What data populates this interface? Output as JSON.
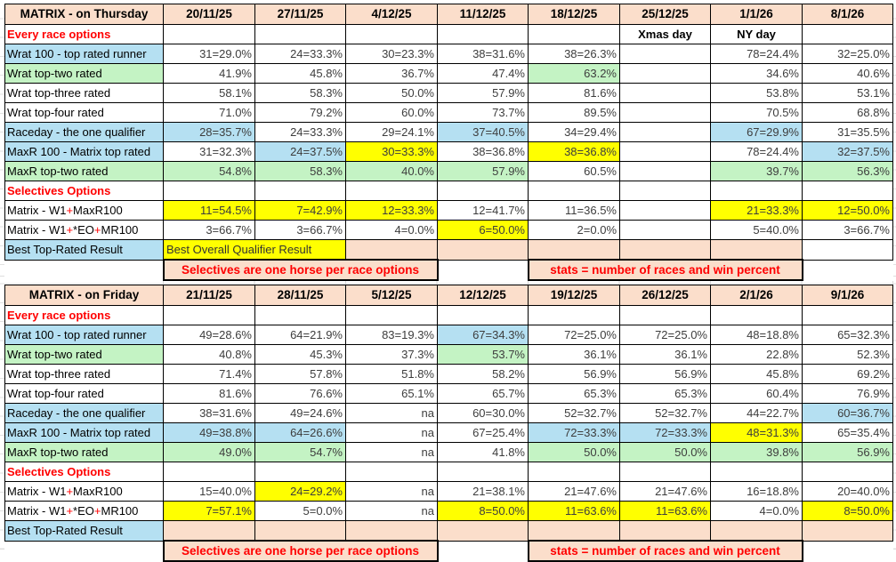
{
  "colors": {
    "header_bg": "#fbdecb",
    "highlight_blue": "#b5e0f2",
    "highlight_green": "#c4f3c4",
    "highlight_yellow": "#ffff00",
    "note_red": "#ff0000",
    "cell_border": "#000000"
  },
  "tables": [
    {
      "name": "matrix-thursday",
      "title": "MATRIX - on Thursday",
      "dates": [
        "20/11/25",
        "27/11/25",
        "4/12/25",
        "11/12/25",
        "18/12/25",
        "25/12/25",
        "1/1/26",
        "8/1/26"
      ],
      "rows": [
        {
          "type": "section",
          "name": "every-race-options",
          "label": [
            {
              "t": "Every race options",
              "red": true
            }
          ],
          "cells": [
            "",
            "",
            "",
            "",
            "",
            "Xmas day",
            "NY day",
            ""
          ]
        },
        {
          "type": "data",
          "name": "wrat-100",
          "label": [
            {
              "t": "Wrat 100 - top rated runner"
            }
          ],
          "label_bg": "blue",
          "cells": [
            {
              "t": "31=29.0%"
            },
            {
              "t": "24=33.3%"
            },
            {
              "t": "30=23.3%"
            },
            {
              "t": "38=31.6%"
            },
            {
              "t": "38=26.3%"
            },
            {
              "t": ""
            },
            {
              "t": "78=24.4%"
            },
            {
              "t": "32=25.0%"
            }
          ]
        },
        {
          "type": "data",
          "name": "wrat-top-two",
          "label": [
            {
              "t": "Wrat top-two rated"
            }
          ],
          "label_bg": "green",
          "cells": [
            {
              "t": "41.9%"
            },
            {
              "t": "45.8%"
            },
            {
              "t": "36.7%"
            },
            {
              "t": "47.4%"
            },
            {
              "t": "63.2%",
              "bg": "green"
            },
            {
              "t": ""
            },
            {
              "t": "34.6%"
            },
            {
              "t": "40.6%"
            }
          ]
        },
        {
          "type": "data",
          "name": "wrat-top-three",
          "label": [
            {
              "t": "Wrat top-three rated"
            }
          ],
          "cells": [
            {
              "t": "58.1%"
            },
            {
              "t": "58.3%"
            },
            {
              "t": "50.0%"
            },
            {
              "t": "57.9%"
            },
            {
              "t": "81.6%"
            },
            {
              "t": ""
            },
            {
              "t": "53.8%"
            },
            {
              "t": "53.1%"
            }
          ]
        },
        {
          "type": "data",
          "name": "wrat-top-four",
          "label": [
            {
              "t": "Wrat top-four rated"
            }
          ],
          "cells": [
            {
              "t": "71.0%"
            },
            {
              "t": "79.2%"
            },
            {
              "t": "60.0%"
            },
            {
              "t": "73.7%"
            },
            {
              "t": "89.5%"
            },
            {
              "t": ""
            },
            {
              "t": "70.5%"
            },
            {
              "t": "68.8%"
            }
          ]
        },
        {
          "type": "data",
          "name": "raceday",
          "label": [
            {
              "t": "Raceday - the one qualifier"
            }
          ],
          "label_bg": "blue",
          "cells": [
            {
              "t": "28=35.7%",
              "bg": "blue"
            },
            {
              "t": "24=33.3%"
            },
            {
              "t": "29=24.1%"
            },
            {
              "t": "37=40.5%",
              "bg": "blue"
            },
            {
              "t": "34=29.4%"
            },
            {
              "t": ""
            },
            {
              "t": "67=29.9%",
              "bg": "blue"
            },
            {
              "t": "31=35.5%"
            }
          ]
        },
        {
          "type": "data",
          "name": "maxr-100",
          "label": [
            {
              "t": "MaxR 100 - Matrix top rated"
            }
          ],
          "label_bg": "blue",
          "cells": [
            {
              "t": "31=32.3%"
            },
            {
              "t": "24=37.5%",
              "bg": "blue"
            },
            {
              "t": "30=33.3%",
              "bg": "yellow"
            },
            {
              "t": "38=36.8%"
            },
            {
              "t": "38=36.8%",
              "bg": "yellow"
            },
            {
              "t": ""
            },
            {
              "t": "78=24.4%"
            },
            {
              "t": "32=37.5%",
              "bg": "blue"
            }
          ]
        },
        {
          "type": "data",
          "name": "maxr-top-two",
          "label": [
            {
              "t": "MaxR top-two rated"
            }
          ],
          "label_bg": "green",
          "cells": [
            {
              "t": "54.8%",
              "bg": "green"
            },
            {
              "t": "58.3%",
              "bg": "green"
            },
            {
              "t": "40.0%",
              "bg": "green"
            },
            {
              "t": "57.9%",
              "bg": "green"
            },
            {
              "t": "60.5%"
            },
            {
              "t": ""
            },
            {
              "t": "39.7%",
              "bg": "green"
            },
            {
              "t": "56.3%",
              "bg": "green"
            }
          ]
        },
        {
          "type": "section",
          "name": "selectives-options",
          "label": [
            {
              "t": "Selectives Options",
              "red": true
            }
          ],
          "cells": [
            "",
            "",
            "",
            "",
            "",
            "",
            "",
            ""
          ]
        },
        {
          "type": "data",
          "name": "matrix-w1-maxr100",
          "label": [
            {
              "t": "Matrix - W1"
            },
            {
              "t": "+",
              "red": true
            },
            {
              "t": "MaxR100"
            }
          ],
          "cells": [
            {
              "t": "11=54.5%",
              "bg": "yellow"
            },
            {
              "t": "7=42.9%",
              "bg": "yellow"
            },
            {
              "t": "12=33.3%",
              "bg": "yellow"
            },
            {
              "t": "12=41.7%"
            },
            {
              "t": "11=36.5%"
            },
            {
              "t": ""
            },
            {
              "t": "21=33.3%",
              "bg": "yellow"
            },
            {
              "t": "12=50.0%",
              "bg": "yellow"
            }
          ]
        },
        {
          "type": "data",
          "name": "matrix-w1-eo-mr100",
          "label": [
            {
              "t": "Matrix - W1"
            },
            {
              "t": "+",
              "red": true
            },
            {
              "t": "*EO"
            },
            {
              "t": "+",
              "red": true
            },
            {
              "t": "MR100"
            }
          ],
          "cells": [
            {
              "t": "3=66.7%"
            },
            {
              "t": "3=66.7%"
            },
            {
              "t": "4=0.0%"
            },
            {
              "t": "6=50.0%",
              "bg": "yellow"
            },
            {
              "t": "2=0.0%"
            },
            {
              "t": ""
            },
            {
              "t": "5=40.0%"
            },
            {
              "t": "3=66.7%"
            }
          ]
        },
        {
          "type": "data",
          "name": "best-top-rated",
          "label": [
            {
              "t": "Best Top-Rated Result"
            }
          ],
          "label_bg": "blue",
          "cells": [
            {
              "t": "Best Overall Qualifier Result",
              "bg": "yellow",
              "span": 2,
              "align": "left"
            },
            {
              "t": "",
              "bg": "peach"
            },
            {
              "t": "",
              "bg": "peach"
            },
            {
              "t": "",
              "bg": "peach"
            },
            {
              "t": "",
              "bg": "peach"
            },
            {
              "t": "",
              "bg": "peach"
            },
            {
              "t": ""
            }
          ]
        },
        {
          "type": "footer",
          "name": "notes",
          "cells": [
            {
              "t": "Selectives are one horse per race options",
              "span": 3,
              "note": true
            },
            {
              "span": 1
            },
            {
              "t": "stats = number of races and win percent",
              "span": 3,
              "note": true
            },
            {
              "span": 1
            }
          ]
        }
      ]
    },
    {
      "name": "matrix-friday",
      "title": "MATRIX - on Friday",
      "dates": [
        "21/11/25",
        "28/11/25",
        "5/12/25",
        "12/12/25",
        "19/12/25",
        "26/12/25",
        "2/1/26",
        "9/1/26"
      ],
      "rows": [
        {
          "type": "section",
          "name": "every-race-options",
          "label": [
            {
              "t": "Every race options",
              "red": true
            }
          ],
          "cells": [
            "",
            "",
            "",
            "",
            "",
            "",
            "",
            ""
          ]
        },
        {
          "type": "data",
          "name": "wrat-100",
          "label": [
            {
              "t": "Wrat 100 - top rated runner"
            }
          ],
          "label_bg": "blue",
          "cells": [
            {
              "t": "49=28.6%"
            },
            {
              "t": "64=21.9%"
            },
            {
              "t": "83=19.3%"
            },
            {
              "t": "67=34.3%",
              "bg": "blue"
            },
            {
              "t": "72=25.0%"
            },
            {
              "t": "72=25.0%"
            },
            {
              "t": "48=18.8%"
            },
            {
              "t": "65=32.3%"
            }
          ]
        },
        {
          "type": "data",
          "name": "wrat-top-two",
          "label": [
            {
              "t": "Wrat top-two rated"
            }
          ],
          "label_bg": "green",
          "cells": [
            {
              "t": "40.8%"
            },
            {
              "t": "45.3%"
            },
            {
              "t": "37.3%"
            },
            {
              "t": "53.7%",
              "bg": "green"
            },
            {
              "t": "36.1%"
            },
            {
              "t": "36.1%"
            },
            {
              "t": "22.8%"
            },
            {
              "t": "52.3%"
            }
          ]
        },
        {
          "type": "data",
          "name": "wrat-top-three",
          "label": [
            {
              "t": "Wrat top-three rated"
            }
          ],
          "cells": [
            {
              "t": "71.4%"
            },
            {
              "t": "57.8%"
            },
            {
              "t": "51.8%"
            },
            {
              "t": "58.2%"
            },
            {
              "t": "56.9%"
            },
            {
              "t": "56.9%"
            },
            {
              "t": "45.8%"
            },
            {
              "t": "69.2%"
            }
          ]
        },
        {
          "type": "data",
          "name": "wrat-top-four",
          "label": [
            {
              "t": "Wrat top-four rated"
            }
          ],
          "cells": [
            {
              "t": "81.6%"
            },
            {
              "t": "76.6%"
            },
            {
              "t": "65.1%"
            },
            {
              "t": "65.7%"
            },
            {
              "t": "65.3%"
            },
            {
              "t": "65.3%"
            },
            {
              "t": "60.4%"
            },
            {
              "t": "76.9%"
            }
          ]
        },
        {
          "type": "data",
          "name": "raceday",
          "label": [
            {
              "t": "Raceday - the one qualifier"
            }
          ],
          "label_bg": "blue",
          "cells": [
            {
              "t": "38=31.6%"
            },
            {
              "t": "49=24.6%"
            },
            {
              "t": "na"
            },
            {
              "t": "60=30.0%"
            },
            {
              "t": "52=32.7%"
            },
            {
              "t": "52=32.7%"
            },
            {
              "t": "44=22.7%"
            },
            {
              "t": "60=36.7%",
              "bg": "blue"
            }
          ]
        },
        {
          "type": "data",
          "name": "maxr-100",
          "label": [
            {
              "t": "MaxR 100 - Matrix top rated"
            }
          ],
          "label_bg": "blue",
          "cells": [
            {
              "t": "49=38.8%",
              "bg": "blue"
            },
            {
              "t": "64=26.6%",
              "bg": "blue"
            },
            {
              "t": "na"
            },
            {
              "t": "67=25.4%"
            },
            {
              "t": "72=33.3%",
              "bg": "blue"
            },
            {
              "t": "72=33.3%",
              "bg": "blue"
            },
            {
              "t": "48=31.3%",
              "bg": "yellow"
            },
            {
              "t": "65=35.4%"
            }
          ]
        },
        {
          "type": "data",
          "name": "maxr-top-two",
          "label": [
            {
              "t": "MaxR top-two rated"
            }
          ],
          "label_bg": "green",
          "cells": [
            {
              "t": "49.0%",
              "bg": "green"
            },
            {
              "t": "54.7%",
              "bg": "green"
            },
            {
              "t": "na"
            },
            {
              "t": "41.8%"
            },
            {
              "t": "50.0%",
              "bg": "green"
            },
            {
              "t": "50.0%",
              "bg": "green"
            },
            {
              "t": "39.8%",
              "bg": "green"
            },
            {
              "t": "56.9%",
              "bg": "green"
            }
          ]
        },
        {
          "type": "section",
          "name": "selectives-options",
          "label": [
            {
              "t": "Selectives Options",
              "red": true
            }
          ],
          "cells": [
            "",
            "",
            "",
            "",
            "",
            "",
            "",
            ""
          ]
        },
        {
          "type": "data",
          "name": "matrix-w1-maxr100",
          "label": [
            {
              "t": "Matrix - W1"
            },
            {
              "t": "+",
              "red": true
            },
            {
              "t": "MaxR100"
            }
          ],
          "cells": [
            {
              "t": "15=40.0%"
            },
            {
              "t": "24=29.2%",
              "bg": "yellow"
            },
            {
              "t": "na"
            },
            {
              "t": "21=38.1%"
            },
            {
              "t": "21=47.6%"
            },
            {
              "t": "21=47.6%"
            },
            {
              "t": "16=18.8%"
            },
            {
              "t": "20=40.0%"
            }
          ]
        },
        {
          "type": "data",
          "name": "matrix-w1-eo-mr100",
          "label": [
            {
              "t": "Matrix - W1"
            },
            {
              "t": "+",
              "red": true
            },
            {
              "t": "*EO"
            },
            {
              "t": "+",
              "red": true
            },
            {
              "t": "MR100"
            }
          ],
          "cells": [
            {
              "t": "7=57.1%",
              "bg": "yellow"
            },
            {
              "t": "5=0.0%"
            },
            {
              "t": "na"
            },
            {
              "t": "8=50.0%",
              "bg": "yellow"
            },
            {
              "t": "11=63.6%",
              "bg": "yellow"
            },
            {
              "t": "11=63.6%",
              "bg": "yellow"
            },
            {
              "t": "4=0.0%"
            },
            {
              "t": "8=50.0%",
              "bg": "yellow"
            }
          ]
        },
        {
          "type": "data",
          "name": "best-top-rated",
          "label": [
            {
              "t": "Best Top-Rated Result"
            }
          ],
          "label_bg": "blue",
          "cells": [
            {
              "t": "",
              "bg": "peach"
            },
            {
              "t": "",
              "bg": "peach"
            },
            {
              "t": "",
              "bg": "peach"
            },
            {
              "t": "",
              "bg": "peach"
            },
            {
              "t": "",
              "bg": "peach"
            },
            {
              "t": "",
              "bg": "peach"
            },
            {
              "t": "",
              "bg": "peach"
            },
            {
              "t": "",
              "bg": "peach"
            }
          ]
        },
        {
          "type": "footer",
          "name": "notes",
          "cells": [
            {
              "t": "Selectives are one horse per race options",
              "span": 3,
              "note": true
            },
            {
              "span": 1
            },
            {
              "t": "stats = number of races and win percent",
              "span": 3,
              "note": true
            },
            {
              "span": 1
            }
          ]
        }
      ]
    }
  ]
}
